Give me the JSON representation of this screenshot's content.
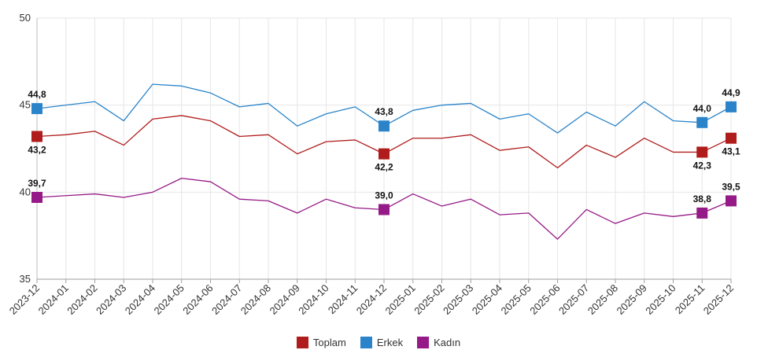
{
  "chart_data": {
    "type": "line",
    "categories": [
      "2023-12",
      "2024-01",
      "2024-02",
      "2024-03",
      "2024-04",
      "2024-05",
      "2024-06",
      "2024-07",
      "2024-08",
      "2024-09",
      "2024-10",
      "2024-11",
      "2024-12",
      "2025-01",
      "2025-02",
      "2025-03",
      "2025-04",
      "2025-05",
      "2025-06",
      "2025-07",
      "2025-08",
      "2025-09",
      "2025-10",
      "2025-11",
      "2025-12"
    ],
    "yticks": [
      "35",
      "40",
      "45",
      "50"
    ],
    "ylim": [
      35,
      50
    ],
    "series": [
      {
        "name": "Toplam",
        "color": "#b01c1c",
        "values": [
          43.2,
          43.3,
          43.5,
          42.7,
          44.2,
          44.4,
          44.1,
          43.2,
          43.3,
          42.2,
          42.9,
          43.0,
          42.2,
          43.1,
          43.1,
          43.3,
          42.4,
          42.6,
          41.4,
          42.7,
          42.0,
          43.1,
          42.3,
          42.3,
          43.1
        ],
        "labels": [
          {
            "index": 0,
            "text": "43,2",
            "position": "below"
          },
          {
            "index": 12,
            "text": "42,2",
            "position": "below"
          },
          {
            "index": 23,
            "text": "42,3",
            "position": "below"
          },
          {
            "index": 24,
            "text": "43,1",
            "position": "below"
          }
        ]
      },
      {
        "name": "Erkek",
        "color": "#2b84c9",
        "values": [
          44.8,
          45.0,
          45.2,
          44.1,
          46.2,
          46.1,
          45.7,
          44.9,
          45.1,
          43.8,
          44.5,
          44.9,
          43.8,
          44.7,
          45.0,
          45.1,
          44.2,
          44.5,
          43.4,
          44.6,
          43.8,
          45.2,
          44.1,
          44.0,
          44.9
        ],
        "labels": [
          {
            "index": 0,
            "text": "44,8",
            "position": "above"
          },
          {
            "index": 12,
            "text": "43,8",
            "position": "above"
          },
          {
            "index": 23,
            "text": "44,0",
            "position": "above"
          },
          {
            "index": 24,
            "text": "44,9",
            "position": "above"
          }
        ]
      },
      {
        "name": "Kadın",
        "color": "#951a87",
        "values": [
          39.7,
          39.8,
          39.9,
          39.7,
          40.0,
          40.8,
          40.6,
          39.6,
          39.5,
          38.8,
          39.6,
          39.1,
          39.0,
          39.9,
          39.2,
          39.6,
          38.7,
          38.8,
          37.3,
          39.0,
          38.2,
          38.8,
          38.6,
          38.8,
          39.5
        ],
        "labels": [
          {
            "index": 0,
            "text": "39,7",
            "position": "above"
          },
          {
            "index": 12,
            "text": "39,0",
            "position": "above"
          },
          {
            "index": 23,
            "text": "38,8",
            "position": "above"
          },
          {
            "index": 24,
            "text": "39,5",
            "position": "above"
          }
        ]
      }
    ],
    "legend_position": "bottom-center",
    "grid": true
  }
}
